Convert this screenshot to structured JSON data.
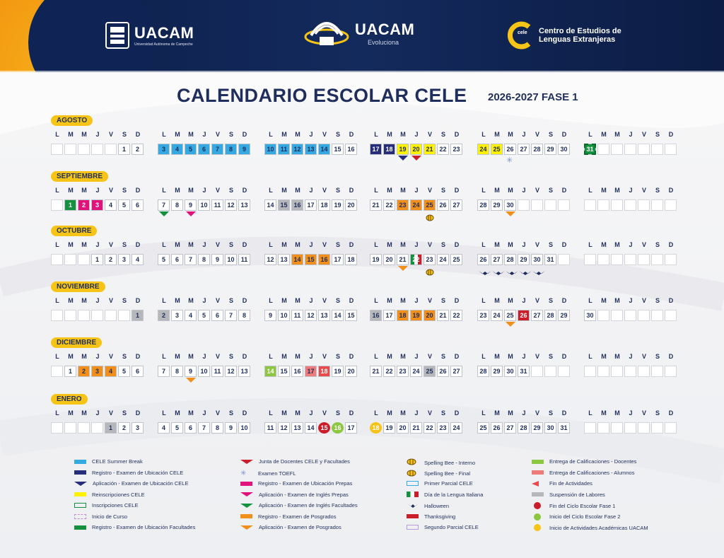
{
  "header": {
    "uacam1": {
      "name": "UACAM",
      "tag": "Universidad Autónoma de Campeche"
    },
    "uacam2": {
      "name": "UACAM",
      "tag": "Evoluciona"
    },
    "cele": {
      "badge": "cele",
      "line1": "Centro de Estudios de",
      "line2": "Lenguas Extranjeras"
    }
  },
  "title": "CALENDARIO ESCOLAR CELE",
  "subtitle": "2026-2027 FASE 1",
  "day_letters": [
    "L",
    "M",
    "M",
    "J",
    "V",
    "S",
    "D"
  ],
  "colors": {
    "summer": "#35a9e1",
    "navy": "#262e7a",
    "yellow": "#fff200",
    "orange": "#f28f1b",
    "magenta": "#e2127d",
    "green": "#14913f",
    "red": "#cc1d2b",
    "gray": "#b5b7bb",
    "lightgreen": "#8dc63f",
    "salmon": "#ee7a79",
    "lightred": "#e94a4e"
  },
  "months": [
    {
      "name": "AGOSTO",
      "weeks": [
        [
          null,
          null,
          null,
          null,
          null,
          "1",
          "2"
        ],
        [
          "3",
          "4",
          "5",
          "6",
          "7",
          "8",
          "9"
        ],
        [
          "10",
          "11",
          "12",
          "13",
          "14",
          "15",
          "16"
        ],
        [
          "17",
          "18",
          "19",
          "20",
          "21",
          "22",
          "23"
        ],
        [
          "24",
          "25",
          "26",
          "27",
          "28",
          "29",
          "30"
        ],
        [
          "31",
          null,
          null,
          null,
          null,
          null,
          null
        ]
      ]
    },
    {
      "name": "SEPTIEMBRE",
      "weeks": [
        [
          null,
          "1",
          "2",
          "3",
          "4",
          "5",
          "6"
        ],
        [
          "7",
          "8",
          "9",
          "10",
          "11",
          "12",
          "13"
        ],
        [
          "14",
          "15",
          "16",
          "17",
          "18",
          "19",
          "20"
        ],
        [
          "21",
          "22",
          "23",
          "24",
          "25",
          "26",
          "27"
        ],
        [
          "28",
          "29",
          "30",
          null,
          null,
          null,
          null
        ],
        [
          null,
          null,
          null,
          null,
          null,
          null,
          null
        ]
      ]
    },
    {
      "name": "OCTUBRE",
      "weeks": [
        [
          null,
          null,
          null,
          "1",
          "2",
          "3",
          "4"
        ],
        [
          "5",
          "6",
          "7",
          "8",
          "9",
          "10",
          "11"
        ],
        [
          "12",
          "13",
          "14",
          "15",
          "16",
          "17",
          "18"
        ],
        [
          "19",
          "20",
          "21",
          "22",
          "23",
          "24",
          "25"
        ],
        [
          "26",
          "27",
          "28",
          "29",
          "30",
          "31",
          null
        ],
        [
          null,
          null,
          null,
          null,
          null,
          null,
          null
        ]
      ]
    },
    {
      "name": "NOVIEMBRE",
      "weeks": [
        [
          null,
          null,
          null,
          null,
          null,
          null,
          "1"
        ],
        [
          "2",
          "3",
          "4",
          "5",
          "6",
          "7",
          "8"
        ],
        [
          "9",
          "10",
          "11",
          "12",
          "13",
          "14",
          "15"
        ],
        [
          "16",
          "17",
          "18",
          "19",
          "20",
          "21",
          "22"
        ],
        [
          "23",
          "24",
          "25",
          "26",
          "27",
          "28",
          "29"
        ],
        [
          "30",
          null,
          null,
          null,
          null,
          null,
          null
        ]
      ]
    },
    {
      "name": "DICIEMBRE",
      "weeks": [
        [
          null,
          "1",
          "2",
          "3",
          "4",
          "5",
          "6"
        ],
        [
          "7",
          "8",
          "9",
          "10",
          "11",
          "12",
          "13"
        ],
        [
          "14",
          "15",
          "16",
          "17",
          "18",
          "19",
          "20"
        ],
        [
          "21",
          "22",
          "23",
          "24",
          "25",
          "26",
          "27"
        ],
        [
          "28",
          "29",
          "30",
          "31",
          null,
          null,
          null
        ],
        [
          null,
          null,
          null,
          null,
          null,
          null,
          null
        ]
      ]
    },
    {
      "name": "ENERO",
      "weeks": [
        [
          null,
          null,
          null,
          null,
          "1",
          "2",
          "3"
        ],
        [
          "4",
          "5",
          "6",
          "7",
          "8",
          "9",
          "10"
        ],
        [
          "11",
          "12",
          "13",
          "14",
          "15",
          "16",
          "17"
        ],
        [
          "18",
          "19",
          "20",
          "21",
          "22",
          "23",
          "24"
        ],
        [
          "25",
          "26",
          "27",
          "28",
          "29",
          "30",
          "31"
        ],
        [
          null,
          null,
          null,
          null,
          null,
          null,
          null
        ]
      ]
    }
  ],
  "highlights": [
    {
      "m": 0,
      "w": 1,
      "d": [
        0,
        1,
        2,
        3,
        4,
        5,
        6
      ],
      "fill": "summer"
    },
    {
      "m": 0,
      "w": 2,
      "d": [
        0,
        1,
        2,
        3,
        4
      ],
      "fill": "summer"
    },
    {
      "m": 0,
      "w": 3,
      "d": [
        0,
        1
      ],
      "fill": "navy",
      "text": "light"
    },
    {
      "m": 0,
      "w": 3,
      "d": [
        2,
        3,
        4
      ],
      "fill": "yellow"
    },
    {
      "m": 0,
      "w": 4,
      "d": [
        0,
        1
      ],
      "fill": "yellow"
    },
    {
      "m": 0,
      "w": 5,
      "d": [
        0
      ],
      "fill": "green",
      "text": "light"
    },
    {
      "m": 1,
      "w": 0,
      "d": [
        1
      ],
      "fill": "green",
      "text": "light"
    },
    {
      "m": 1,
      "w": 0,
      "d": [
        2,
        3
      ],
      "fill": "magenta",
      "text": "light"
    },
    {
      "m": 1,
      "w": 2,
      "d": [
        1,
        2
      ],
      "fill": "gray"
    },
    {
      "m": 1,
      "w": 3,
      "d": [
        2,
        3,
        4
      ],
      "fill": "orange"
    },
    {
      "m": 2,
      "w": 2,
      "d": [
        2,
        3,
        4
      ],
      "fill": "orange"
    },
    {
      "m": 2,
      "w": 3,
      "d": [
        3
      ],
      "fill": "green",
      "text": "light"
    },
    {
      "m": 3,
      "w": 0,
      "d": [
        6
      ],
      "fill": "gray"
    },
    {
      "m": 3,
      "w": 1,
      "d": [
        0
      ],
      "fill": "gray"
    },
    {
      "m": 3,
      "w": 3,
      "d": [
        0
      ],
      "fill": "gray"
    },
    {
      "m": 3,
      "w": 3,
      "d": [
        2,
        3,
        4
      ],
      "fill": "orange"
    },
    {
      "m": 3,
      "w": 4,
      "d": [
        3
      ],
      "fill": "red",
      "text": "light"
    },
    {
      "m": 4,
      "w": 0,
      "d": [
        2,
        3,
        4
      ],
      "fill": "orange"
    },
    {
      "m": 4,
      "w": 2,
      "d": [
        0
      ],
      "fill": "lightgreen",
      "text": "light"
    },
    {
      "m": 4,
      "w": 2,
      "d": [
        3
      ],
      "fill": "salmon"
    },
    {
      "m": 4,
      "w": 2,
      "d": [
        4
      ],
      "fill": "lightred",
      "text": "light"
    },
    {
      "m": 4,
      "w": 3,
      "d": [
        4
      ],
      "fill": "gray"
    },
    {
      "m": 5,
      "w": 0,
      "d": [
        4
      ],
      "fill": "gray"
    }
  ],
  "circles": [
    {
      "m": 5,
      "w": 2,
      "d": 4,
      "fill": "red"
    },
    {
      "m": 5,
      "w": 2,
      "d": 5,
      "fill": "lightgreen"
    },
    {
      "m": 5,
      "w": 3,
      "d": 0,
      "fill": "#f6c416"
    }
  ],
  "legend": [
    {
      "label": "CELE Summer Break",
      "color": "#35a9e1",
      "kind": "bar"
    },
    {
      "label": "Registro - Examen de Ubicación CELE",
      "color": "#262e7a",
      "kind": "bar"
    },
    {
      "label": "Aplicación - Examen de Ubicación CELE",
      "color": "#262e7a",
      "kind": "tri"
    },
    {
      "label": "Reinscripciones CELE",
      "color": "#fff200",
      "kind": "bar"
    },
    {
      "label": "Inscripciones CELE",
      "color": "#14913f",
      "kind": "outline"
    },
    {
      "label": "Inicio de Curso",
      "color": "#c08bd0",
      "kind": "dashed"
    },
    {
      "label": "Registro - Examen de Ubicación Facultades",
      "color": "#14913f",
      "kind": "bar"
    },
    {
      "label": "Junta de Docentes CELE y Facultades",
      "color": "#cc1d2b",
      "kind": "tri"
    },
    {
      "label": "Examen TOEFL",
      "color": "#7f8fc8",
      "kind": "star"
    },
    {
      "label": "Registro - Examen de Ubicación Prepas",
      "color": "#e2127d",
      "kind": "bar"
    },
    {
      "label": "Aplicación - Examen de Inglés Prepas",
      "color": "#e2127d",
      "kind": "tri"
    },
    {
      "label": "Aplicación - Examen de Inglés Facultades",
      "color": "#14913f",
      "kind": "tri"
    },
    {
      "label": "Registro - Examen de Posgrados",
      "color": "#f28f1b",
      "kind": "bar"
    },
    {
      "label": "Aplicación - Examen de Posgrados",
      "color": "#f28f1b",
      "kind": "tri"
    },
    {
      "label": "Spelling Bee - Interno",
      "color": "#d99a00",
      "kind": "bee"
    },
    {
      "label": "Spelling Bee - Final",
      "color": "#d99a00",
      "kind": "bee"
    },
    {
      "label": "Primer Parcial CELE",
      "color": "#35a9e1",
      "kind": "outline"
    },
    {
      "label": "Día de la Lengua Italiana",
      "color": "#14913f",
      "kind": "italy"
    },
    {
      "label": "Halloween",
      "color": "#1f2e5c",
      "kind": "bats"
    },
    {
      "label": "Thanksgiving",
      "color": "#cc1d2b",
      "kind": "bar"
    },
    {
      "label": "Segundo Parcial CELE",
      "color": "#b89bd6",
      "kind": "outline"
    },
    {
      "label": "Entrega de Calificaciones - Docentes",
      "color": "#8dc63f",
      "kind": "bar"
    },
    {
      "label": "Entrega de Calificaciones - Alumnos",
      "color": "#ee7a79",
      "kind": "bar"
    },
    {
      "label": "Fin de Actividades",
      "color": "#e94a4e",
      "kind": "arrow"
    },
    {
      "label": "Suspensión de Labores",
      "color": "#b5b7bb",
      "kind": "bar"
    },
    {
      "label": "Fin del Ciclo Escolar Fase 1",
      "color": "#cc1d2b",
      "kind": "dot"
    },
    {
      "label": "Inicio del Ciclo Escolar Fase 2",
      "color": "#8dc63f",
      "kind": "dot"
    },
    {
      "label": "Inicio de Actividades Académicas UACAM",
      "color": "#f6c416",
      "kind": "dot"
    }
  ]
}
